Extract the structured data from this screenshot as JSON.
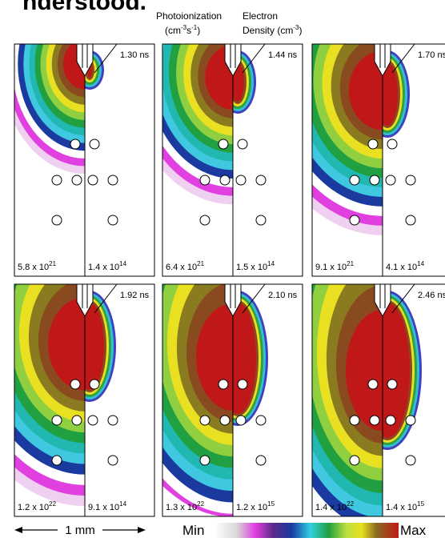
{
  "top_text": "nderstood.",
  "header": {
    "photoionization": {
      "title": "Photoionization",
      "u1": "(cm",
      "s1": "-3",
      "u2": "s",
      "s2": "-1",
      "u3": ")"
    },
    "electron_density": {
      "title": "Electron",
      "u1": "Density (cm",
      "s1": "-3",
      "u3": ")"
    }
  },
  "panels": [
    {
      "time": "1.30 ns",
      "left": {
        "base": "5.8 x 10",
        "exp": "21"
      },
      "right": {
        "base": "1.4 x 10",
        "exp": "14"
      }
    },
    {
      "time": "1.44 ns",
      "left": {
        "base": "6.4 x 10",
        "exp": "21"
      },
      "right": {
        "base": "1.5 x 10",
        "exp": "14"
      }
    },
    {
      "time": "1.70 ns",
      "left": {
        "base": "9.1 x 10",
        "exp": "21"
      },
      "right": {
        "base": "4.1 x 10",
        "exp": "14"
      }
    },
    {
      "time": "1.92 ns",
      "left": {
        "base": "1.2 x 10",
        "exp": "22"
      },
      "right": {
        "base": "9.1 x 10",
        "exp": "14"
      }
    },
    {
      "time": "2.10 ns",
      "left": {
        "base": "1.3 x 10",
        "exp": "22"
      },
      "right": {
        "base": "1.2 x 10",
        "exp": "15"
      }
    },
    {
      "time": "2.46 ns",
      "left": {
        "base": "1.4 x 10",
        "exp": "22"
      },
      "right": {
        "base": "1.4 x 10",
        "exp": "15"
      }
    }
  ],
  "scale": {
    "label": "1 mm"
  },
  "colorbar": {
    "min": "Min",
    "max": "Max"
  }
}
